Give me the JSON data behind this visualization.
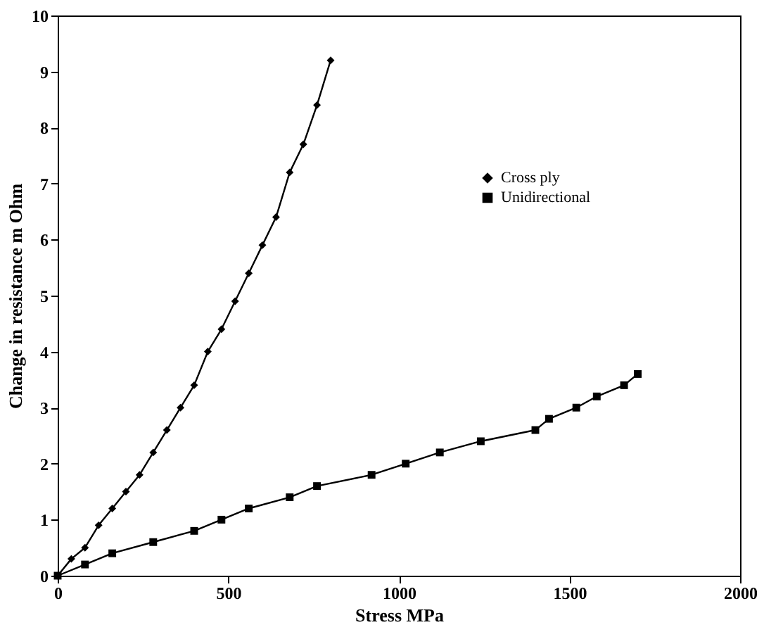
{
  "chart_data": {
    "type": "line",
    "xlabel": "Stress MPa",
    "ylabel": "Change in resistance m Ohm",
    "xlim": [
      0,
      2000
    ],
    "xticks": [
      0,
      500,
      1000,
      1500,
      2000
    ],
    "ylim": [
      0,
      10
    ],
    "yticks": [
      0,
      1,
      2,
      3,
      4,
      5,
      6,
      7,
      8,
      9,
      10
    ],
    "grid": false,
    "legend": "top right",
    "line_style": "solid",
    "series": [
      {
        "name": "Cross ply",
        "color": "#000000",
        "marker": "diamond",
        "x": [
          0,
          40,
          80,
          120,
          160,
          200,
          240,
          280,
          320,
          360,
          400,
          440,
          480,
          520,
          560,
          600,
          640,
          680,
          720,
          760,
          800
        ],
        "values": [
          0,
          0.3,
          0.5,
          0.9,
          1.2,
          1.5,
          1.8,
          2.2,
          2.6,
          3.0,
          3.4,
          4.0,
          4.4,
          4.9,
          5.4,
          5.9,
          6.4,
          7.2,
          7.7,
          8.4,
          9.2
        ]
      },
      {
        "name": "Unidirectional",
        "color": "#000000",
        "marker": "square",
        "x": [
          0,
          80,
          160,
          280,
          400,
          480,
          560,
          680,
          760,
          920,
          1020,
          1120,
          1240,
          1400,
          1440,
          1520,
          1580,
          1660,
          1700
        ],
        "values": [
          0,
          0.2,
          0.4,
          0.6,
          0.8,
          1.0,
          1.2,
          1.4,
          1.6,
          1.8,
          2.0,
          2.2,
          2.4,
          2.6,
          2.8,
          3.0,
          3.2,
          3.4,
          3.6
        ]
      }
    ]
  }
}
